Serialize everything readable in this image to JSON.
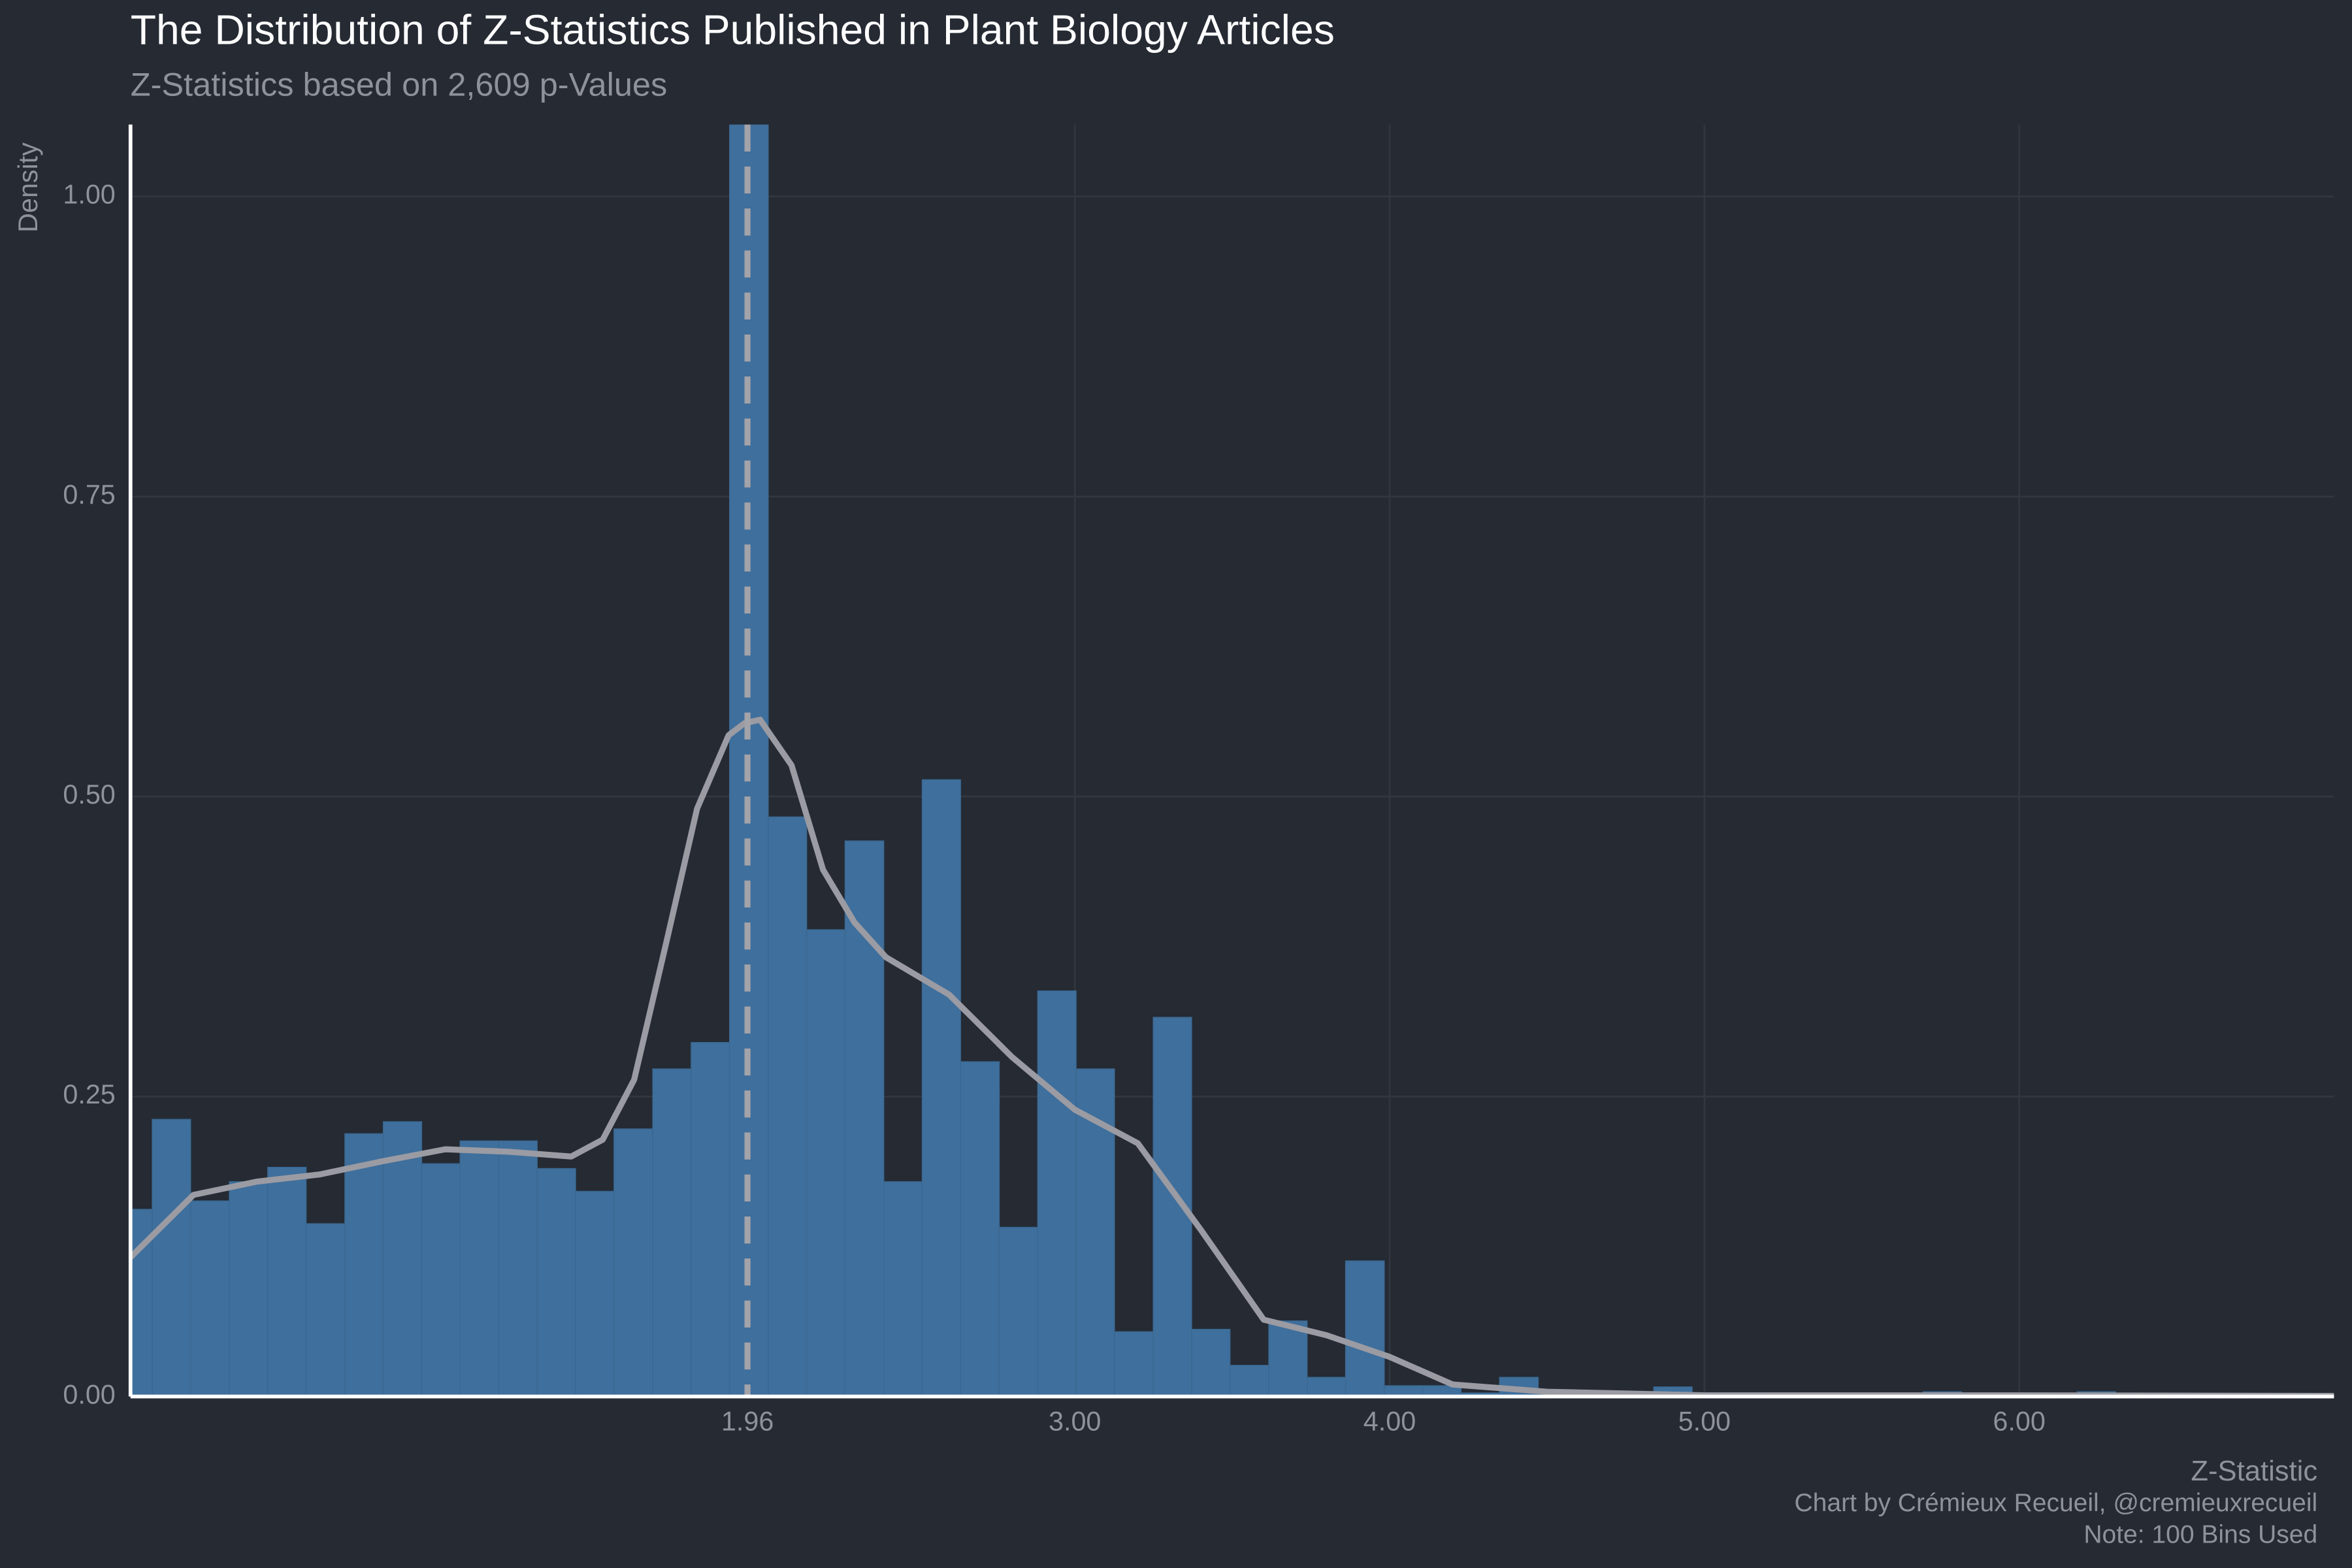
{
  "chart_data": {
    "type": "histogram",
    "title": "The Distribution of Z-Statistics Published in Plant Biology Articles",
    "subtitle": "Z-Statistics based on 2,609 p-Values",
    "x_label": "Z-Statistic",
    "y_label": "Density",
    "captions": [
      "Chart by Crémieux Recueil, @cremieuxrecueil",
      "Note: 100 Bins Used"
    ],
    "bins": [
      -0.053,
      0.069,
      0.191,
      0.314,
      0.436,
      0.558,
      0.681,
      0.803,
      0.925,
      1.047,
      1.17,
      1.292,
      1.414,
      1.536,
      1.659,
      1.781,
      1.903,
      2.026,
      2.148,
      2.27,
      2.393,
      2.515,
      2.637,
      2.76,
      2.882,
      3.004,
      3.126,
      3.249,
      3.371,
      3.493,
      3.616,
      3.738,
      3.86,
      3.983,
      4.105,
      4.227,
      4.349,
      4.472,
      4.594,
      4.716,
      4.839,
      4.961,
      5.083,
      5.206,
      5.328,
      5.45,
      5.572,
      5.695,
      5.817,
      5.939,
      6.062,
      6.184,
      6.306,
      6.429,
      6.551,
      6.673,
      6.796,
      6.918,
      7.04
    ],
    "values": [
      0.156,
      0.231,
      0.163,
      0.179,
      0.191,
      0.144,
      0.219,
      0.229,
      0.194,
      0.213,
      0.213,
      0.19,
      0.171,
      0.223,
      0.273,
      0.295,
      1.06,
      0.483,
      0.389,
      0.463,
      0.179,
      0.514,
      0.279,
      0.141,
      0.338,
      0.273,
      0.054,
      0.316,
      0.056,
      0.026,
      0.063,
      0.016,
      0.113,
      0.009,
      0.009,
      0.003,
      0.016,
      0.003,
      0.002,
      0.002,
      0.008,
      0.003,
      0.003,
      0.002,
      0.002,
      0.002,
      0.002,
      0.004,
      0.002,
      0.001,
      0.002,
      0.004,
      0.001,
      0.001,
      0.001,
      0.001,
      0.001,
      0.001
    ],
    "color": "#3f6f9c",
    "density": {
      "color": "#9b9ba3",
      "x": [
        0,
        0.2,
        0.4,
        0.6,
        0.8,
        1.0,
        1.2,
        1.4,
        1.5,
        1.6,
        1.7,
        1.8,
        1.9,
        1.95,
        2.0,
        2.1,
        2.2,
        2.3,
        2.4,
        2.6,
        2.8,
        3.0,
        3.2,
        3.4,
        3.6,
        3.8,
        4.0,
        4.2,
        4.5,
        5.0,
        6.0,
        7.0
      ],
      "y": [
        0.116,
        0.168,
        0.179,
        0.185,
        0.196,
        0.206,
        0.204,
        0.2,
        0.214,
        0.264,
        0.376,
        0.49,
        0.551,
        0.561,
        0.564,
        0.526,
        0.439,
        0.395,
        0.366,
        0.335,
        0.283,
        0.239,
        0.211,
        0.139,
        0.064,
        0.051,
        0.033,
        0.01,
        0.004,
        0.001,
        0.001,
        0.0005
      ]
    },
    "threshold": 1.96,
    "threshold_color": "#a3a3aa",
    "xlim": [
      0,
      7.0
    ],
    "ylim": [
      0,
      1.06
    ],
    "xticks": [
      1.96,
      {
        "value": 3,
        "label": "3.00"
      },
      {
        "value": 4,
        "label": "4.00"
      },
      {
        "value": 5,
        "label": "5.00"
      },
      {
        "value": 6,
        "label": "6.00"
      }
    ],
    "yticks": [
      {
        "value": 0,
        "label": "0.00"
      },
      {
        "value": 0.25,
        "label": "0.25"
      },
      {
        "value": 0.5,
        "label": "0.50"
      },
      {
        "value": 0.75,
        "label": "0.75"
      },
      {
        "value": 1,
        "label": "1.00"
      }
    ],
    "grid": true
  }
}
